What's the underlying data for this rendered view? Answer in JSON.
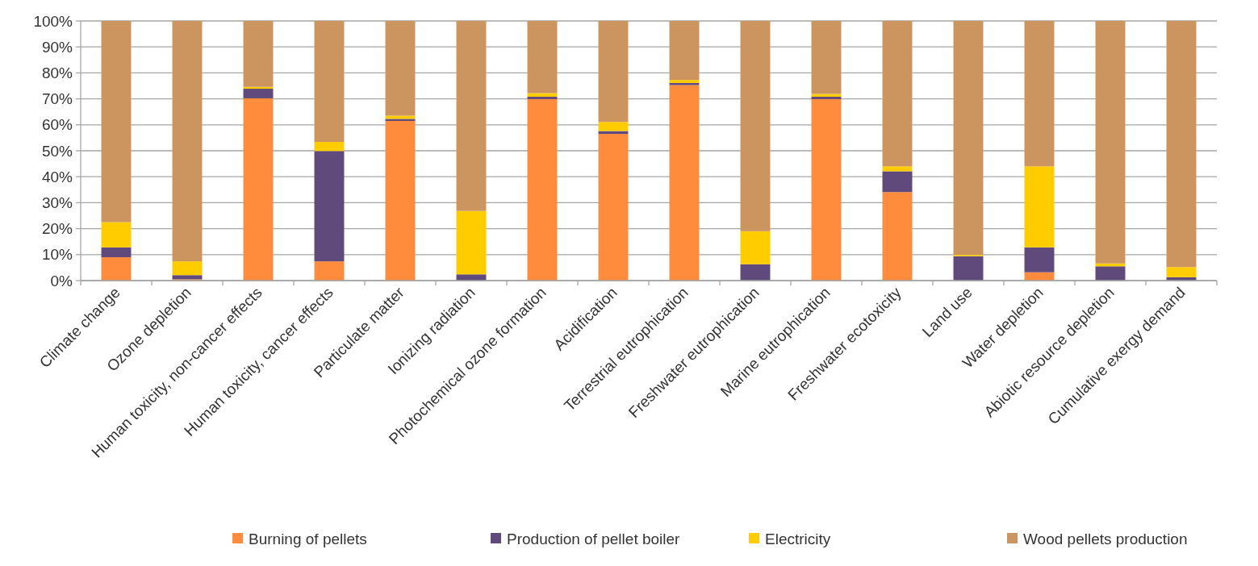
{
  "chart_data": {
    "type": "bar",
    "stacked": true,
    "categories": [
      "Climate change",
      "Ozone depletion",
      "Human toxicity, non-cancer effects",
      "Human toxicity, cancer effects",
      "Particulate matter",
      "Ionizing radiation",
      "Photochemical ozone formation",
      "Acidification",
      "Terrestrial eutrophication",
      "Freshwater eutrophication",
      "Marine eutrophication",
      "Freshwater ecotoxicity",
      "Land use",
      "Water depletion",
      "Abiotic resource depletion",
      "Cumulative exergy demand"
    ],
    "series": [
      {
        "name": "Burning of pellets",
        "color": "#ff8c3c",
        "values": [
          9.0,
          0.5,
          70.2,
          7.4,
          61.5,
          0,
          69.9,
          56.5,
          75.3,
          0,
          69.9,
          34.1,
          0,
          3.2,
          0,
          0
        ]
      },
      {
        "name": "Production of pellet boiler",
        "color": "#604a7b",
        "values": [
          3.8,
          1.6,
          3.7,
          42.5,
          0.8,
          2.4,
          0.9,
          1.1,
          0.8,
          6.3,
          0.9,
          8.0,
          9.4,
          9.6,
          5.5,
          1.3
        ]
      },
      {
        "name": "Electricity",
        "color": "#ffcc00",
        "values": [
          9.7,
          5.3,
          0.7,
          3.5,
          1.2,
          24.4,
          1.4,
          3.5,
          1.2,
          12.7,
          1.1,
          1.9,
          0.5,
          31.2,
          1.1,
          3.9
        ]
      },
      {
        "name": "Wood pellets production",
        "color": "#cc9560",
        "values": [
          77.5,
          92.6,
          25.4,
          46.6,
          36.5,
          73.2,
          27.8,
          38.9,
          22.7,
          81.0,
          28.1,
          56.0,
          90.1,
          56.0,
          93.4,
          94.8
        ]
      }
    ],
    "ylim": [
      0,
      100
    ],
    "yticks": [
      {
        "value": 0,
        "label": "0%"
      },
      {
        "value": 10,
        "label": "10%"
      },
      {
        "value": 20,
        "label": "20%"
      },
      {
        "value": 30,
        "label": "30%"
      },
      {
        "value": 40,
        "label": "40%"
      },
      {
        "value": 50,
        "label": "50%"
      },
      {
        "value": 60,
        "label": "60%"
      },
      {
        "value": 70,
        "label": "70%"
      },
      {
        "value": 80,
        "label": "80%"
      },
      {
        "value": 90,
        "label": "90%"
      },
      {
        "value": 100,
        "label": "100%"
      }
    ],
    "grid": "y",
    "legend": "bottom"
  }
}
